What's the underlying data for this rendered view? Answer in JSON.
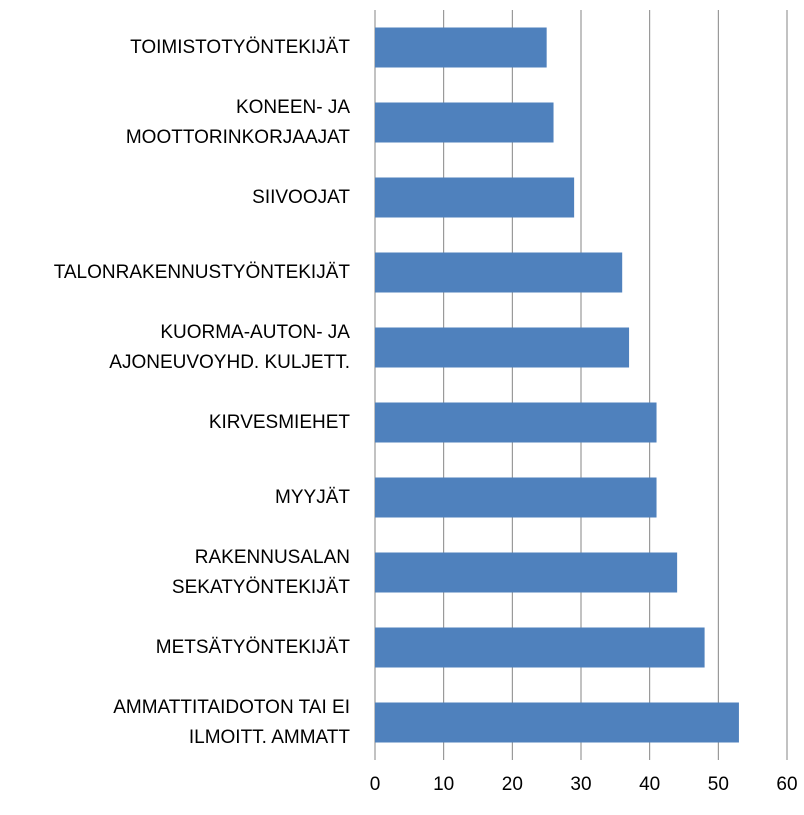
{
  "chart_data": {
    "type": "bar",
    "orientation": "horizontal",
    "categories": [
      "TOIMISTOTYÖNTEKIJÄT",
      "KONEEN- JA\nMOOTTORINKORJAAJAT",
      "SIIVOOJAT",
      "TALONRAKENNUSTYÖNTEKIJÄT",
      "KUORMA-AUTON- JA\nAJONEUVOYHD. KULJETT.",
      "KIRVESMIEHET",
      "MYYJÄT",
      "RAKENNUSALAN\nSEKATYÖNTEKIJÄT",
      "METSÄTYÖNTEKIJÄT",
      "AMMATTITAIDOTON TAI EI\nILMOITT. AMMATT"
    ],
    "values": [
      25,
      26,
      29,
      36,
      37,
      41,
      41,
      44,
      48,
      53
    ],
    "color": "#4f81bd",
    "xlim": [
      0,
      60
    ],
    "xticks": [
      0,
      10,
      20,
      30,
      40,
      50,
      60
    ],
    "grid": true
  }
}
